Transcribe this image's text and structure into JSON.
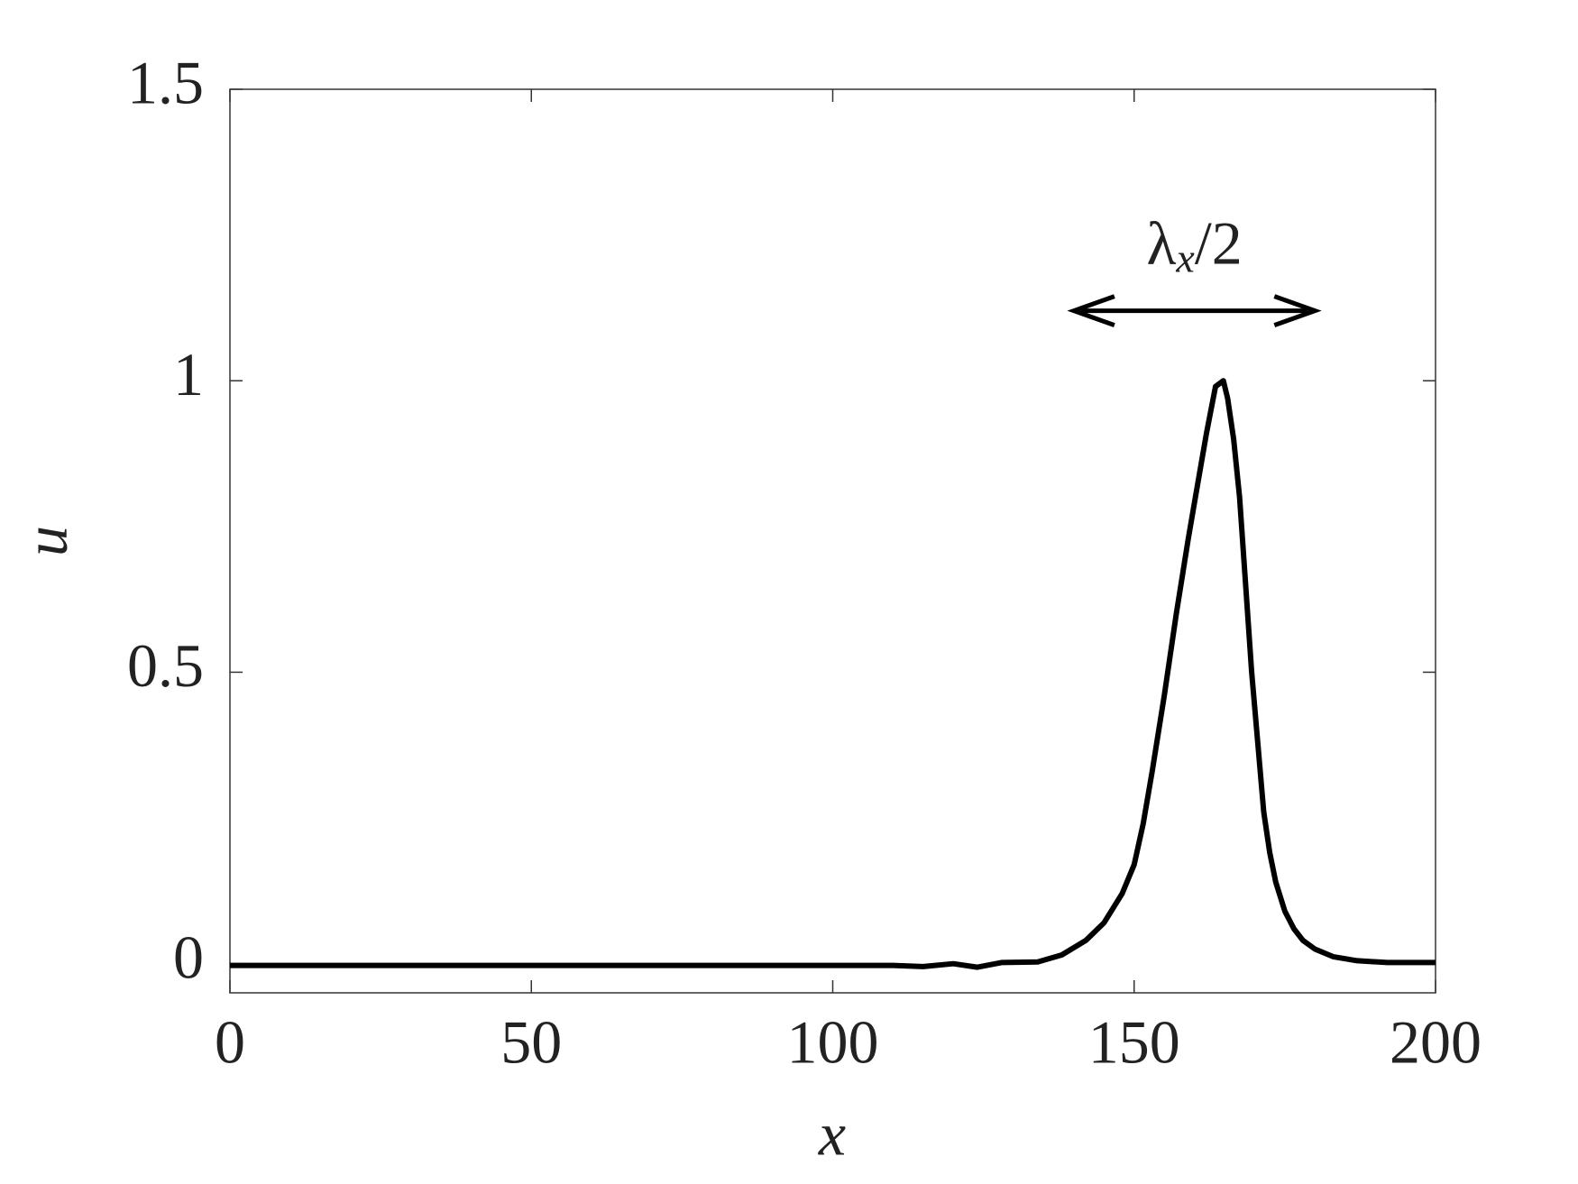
{
  "chart_data": {
    "type": "line",
    "xlabel": "x",
    "ylabel": "u",
    "annotation": {
      "parts": [
        "λ",
        "x",
        "/2"
      ],
      "span_x": [
        140,
        180
      ],
      "span_y": 1.12
    },
    "series": [
      {
        "color": "#000000",
        "x": [
          0,
          20,
          40,
          60,
          80,
          100,
          110,
          115,
          120,
          124,
          128,
          134,
          138,
          142,
          145,
          148,
          150,
          151.5,
          153,
          155,
          157,
          159,
          160.5,
          162,
          163.5,
          164.8,
          165.5,
          166.5,
          167.5,
          168.5,
          169.5,
          170.5,
          171.5,
          172.5,
          173.5,
          175,
          176.5,
          178,
          180,
          183,
          187,
          192,
          200
        ],
        "values": [
          -0.003,
          -0.003,
          -0.003,
          -0.003,
          -0.003,
          -0.003,
          -0.003,
          -0.005,
          0.0,
          -0.006,
          0.002,
          0.003,
          0.015,
          0.04,
          0.07,
          0.12,
          0.17,
          0.24,
          0.33,
          0.46,
          0.6,
          0.73,
          0.82,
          0.91,
          0.99,
          1.0,
          0.97,
          0.9,
          0.8,
          0.65,
          0.5,
          0.38,
          0.26,
          0.19,
          0.14,
          0.09,
          0.06,
          0.04,
          0.025,
          0.012,
          0.005,
          0.002,
          0.002
        ]
      }
    ],
    "xlim": [
      0,
      200
    ],
    "xticks": [
      0,
      50,
      100,
      150,
      200
    ],
    "ylim": [
      -0.05,
      1.5
    ],
    "yticks": [
      0,
      0.5,
      1,
      1.5
    ],
    "grid": false
  }
}
